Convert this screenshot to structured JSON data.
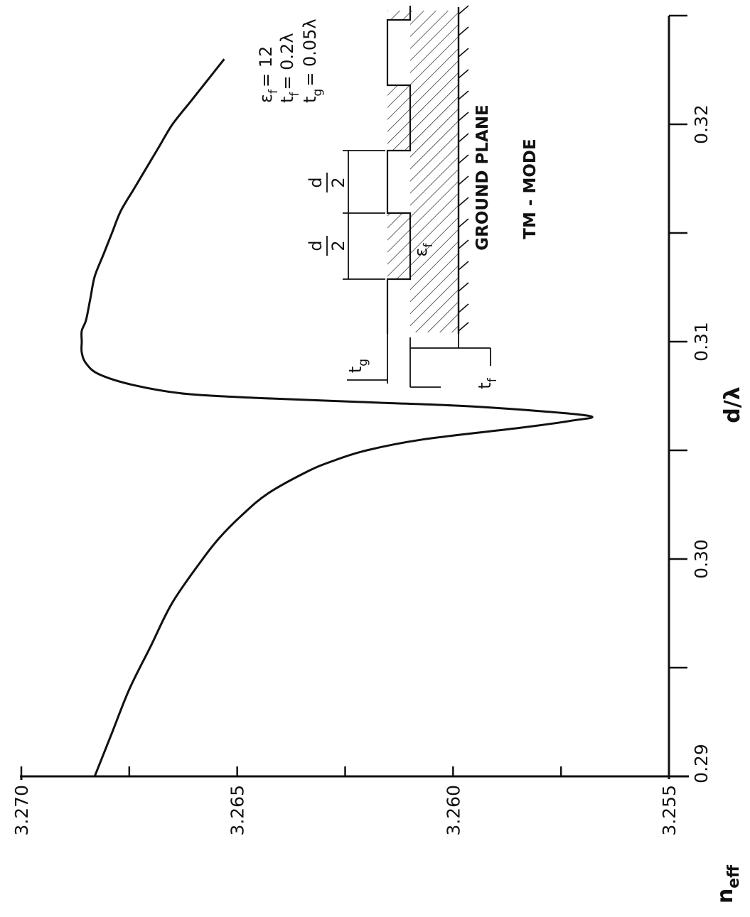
{
  "chart_data": {
    "type": "line",
    "xlabel": "d/λ",
    "ylabel": "n_eff",
    "ylabel_main": "n",
    "ylabel_sub": "eff",
    "xlim": [
      0.29,
      0.325
    ],
    "ylim": [
      3.255,
      3.27
    ],
    "x_ticks": [
      0.29,
      0.295,
      0.3,
      0.305,
      0.31,
      0.315,
      0.32,
      0.325
    ],
    "x_tick_labels": [
      "0.29",
      "",
      "0.30",
      "",
      "0.31",
      "",
      "0.32",
      ""
    ],
    "y_ticks": [
      3.255,
      3.2575,
      3.26,
      3.2625,
      3.265,
      3.2675,
      3.27
    ],
    "y_tick_labels": [
      "3.255",
      "",
      "3.260",
      "",
      "3.265",
      "",
      "3.270"
    ],
    "grid": false,
    "series": [
      {
        "x": [
          0.29,
          0.292,
          0.294,
          0.296,
          0.298,
          0.3,
          0.301,
          0.302,
          0.303,
          0.304,
          0.3045,
          0.305,
          0.3055,
          0.306,
          0.30635,
          0.3066,
          0.307,
          0.3072,
          0.3074,
          0.3076,
          0.308,
          0.3085,
          0.309,
          0.3095,
          0.31,
          0.3105,
          0.311,
          0.312,
          0.313,
          0.314,
          0.315,
          0.316,
          0.317,
          0.318,
          0.319,
          0.32,
          0.321,
          0.322,
          0.323
        ],
        "y": [
          3.2683,
          3.2679,
          3.2675,
          3.267,
          3.2665,
          3.2658,
          3.2654,
          3.2649,
          3.2643,
          3.2634,
          3.2628,
          3.262,
          3.2607,
          3.2586,
          3.2573,
          3.2569,
          3.2594,
          3.2618,
          3.2644,
          3.2662,
          3.2674,
          3.2682,
          3.2685,
          3.2686,
          3.2686,
          3.2686,
          3.2685,
          3.2684,
          3.2683,
          3.2681,
          3.2679,
          3.2677,
          3.2674,
          3.2671,
          3.2668,
          3.2665,
          3.2661,
          3.2657,
          3.2653
        ]
      }
    ],
    "params": [
      "ε",
      "f",
      "= 12",
      "t",
      "f",
      "= 0.2λ",
      "t",
      "g",
      "= 0.05λ"
    ],
    "inset": {
      "d_half_numer": "d",
      "d_half_denom": "2",
      "eps_label": "ε",
      "eps_sub": "f",
      "tg_label": "t",
      "tg_sub": "g",
      "tf_label": "t",
      "tf_sub": "f",
      "ground_plane": "GROUND PLANE",
      "mode": "TM - MODE"
    }
  }
}
